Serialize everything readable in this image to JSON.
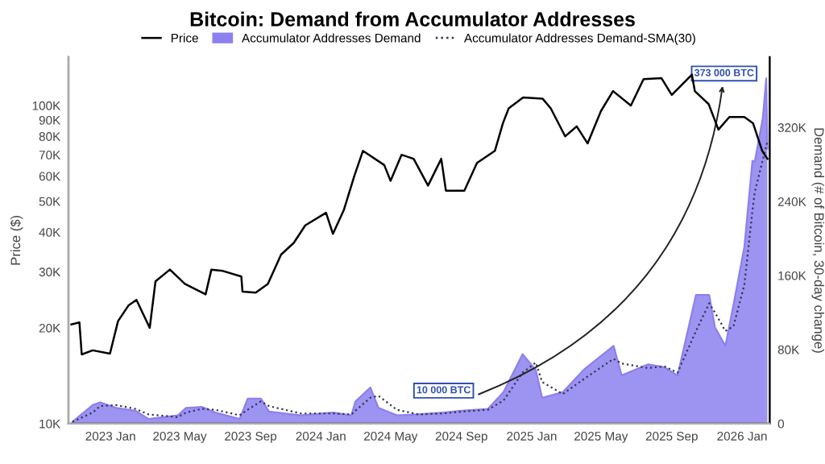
{
  "chart_data": {
    "type": "line",
    "title": "Bitcoin: Demand from Accumulator Addresses",
    "ylabel": "Price ($)",
    "y2label": "Demand (# of Bitcoin, 30-day change)",
    "log": "y",
    "legend": "top",
    "xlim": [
      "2022-10-20",
      "2026-02-18"
    ],
    "xticks": [
      {
        "value": "2023-01-01",
        "label": "2023 Jan"
      },
      {
        "value": "2023-05-01",
        "label": "2023 May"
      },
      {
        "value": "2023-09-01",
        "label": "2023 Sep"
      },
      {
        "value": "2024-01-01",
        "label": "2024 Jan"
      },
      {
        "value": "2024-05-01",
        "label": "2024 May"
      },
      {
        "value": "2024-09-01",
        "label": "2024 Sep"
      },
      {
        "value": "2025-01-01",
        "label": "2025 Jan"
      },
      {
        "value": "2025-05-01",
        "label": "2025 May"
      },
      {
        "value": "2025-09-01",
        "label": "2025 Sep"
      },
      {
        "value": "2026-01-01",
        "label": "2026 Jan"
      }
    ],
    "ylim": [
      10000,
      142000
    ],
    "yticks": [
      {
        "value": 10000,
        "label": "10K"
      },
      {
        "value": 20000,
        "label": "20K"
      },
      {
        "value": 30000,
        "label": "30K"
      },
      {
        "value": 40000,
        "label": "40K"
      },
      {
        "value": 50000,
        "label": "50K"
      },
      {
        "value": 60000,
        "label": "60K"
      },
      {
        "value": 70000,
        "label": "70K"
      },
      {
        "value": 80000,
        "label": "80K"
      },
      {
        "value": 90000,
        "label": "90K"
      },
      {
        "value": 100000,
        "label": "100K"
      }
    ],
    "y2lim": [
      0,
      396000
    ],
    "y2ticks": [
      0,
      {
        "value": 80000,
        "label": "80K"
      },
      {
        "value": 160000,
        "label": "160K"
      },
      {
        "value": 240000,
        "label": "240K"
      },
      {
        "value": 320000,
        "label": "320K"
      }
    ],
    "annotations": [
      "10 000 BTC",
      "373 000 BTC"
    ],
    "series": [
      {
        "name": "Price",
        "axis": "y",
        "color": "#000000",
        "x": [
          "2022-10-25",
          "2022-11-08",
          "2022-11-12",
          "2022-12-01",
          "2022-12-31",
          "2023-01-14",
          "2023-02-01",
          "2023-02-15",
          "2023-03-10",
          "2023-03-20",
          "2023-04-14",
          "2023-05-10",
          "2023-06-15",
          "2023-06-25",
          "2023-07-15",
          "2023-08-16",
          "2023-08-18",
          "2023-09-10",
          "2023-10-01",
          "2023-10-24",
          "2023-11-15",
          "2023-12-05",
          "2024-01-10",
          "2024-01-22",
          "2024-02-10",
          "2024-02-28",
          "2024-03-14",
          "2024-04-20",
          "2024-05-01",
          "2024-05-20",
          "2024-06-10",
          "2024-07-05",
          "2024-07-28",
          "2024-08-05",
          "2024-09-06",
          "2024-09-28",
          "2024-10-29",
          "2024-11-12",
          "2024-11-22",
          "2024-12-17",
          "2025-01-20",
          "2025-02-03",
          "2025-02-28",
          "2025-03-20",
          "2025-04-08",
          "2025-05-01",
          "2025-05-22",
          "2025-06-22",
          "2025-07-14",
          "2025-08-14",
          "2025-09-01",
          "2025-10-06",
          "2025-10-11",
          "2025-11-04",
          "2025-11-21",
          "2025-12-10",
          "2026-01-05",
          "2026-01-20",
          "2026-02-05",
          "2026-02-14"
        ],
        "values": [
          20500,
          20800,
          16500,
          17000,
          16600,
          21000,
          23500,
          24500,
          20000,
          28000,
          30500,
          27500,
          25500,
          30500,
          30200,
          29000,
          26000,
          25800,
          27500,
          34000,
          37000,
          42000,
          46000,
          39500,
          47000,
          60000,
          72000,
          65000,
          58000,
          70000,
          68000,
          56000,
          68000,
          54000,
          54000,
          66000,
          72000,
          88000,
          98000,
          106000,
          105000,
          98000,
          80000,
          86000,
          76000,
          96000,
          111000,
          100000,
          121000,
          122000,
          108000,
          125000,
          111000,
          101000,
          84000,
          92000,
          92000,
          88000,
          72000,
          68000
        ]
      },
      {
        "name": "Accumulator Addresses Demand",
        "type": "area",
        "axis": "y2",
        "color": "#8c80ef",
        "x": [
          "2022-10-27",
          "2022-12-01",
          "2022-12-14",
          "2023-01-11",
          "2023-02-13",
          "2023-03-08",
          "2023-04-28",
          "2023-05-12",
          "2023-06-09",
          "2023-07-02",
          "2023-08-13",
          "2023-08-27",
          "2023-09-19",
          "2023-10-03",
          "2023-11-27",
          "2024-01-22",
          "2024-02-23",
          "2024-03-01",
          "2024-03-27",
          "2024-04-10",
          "2024-05-12",
          "2024-06-18",
          "2024-08-01",
          "2024-09-01",
          "2024-10-17",
          "2024-11-13",
          "2024-12-16",
          "2025-01-08",
          "2025-01-19",
          "2025-02-24",
          "2025-04-01",
          "2025-05-23",
          "2025-06-06",
          "2025-07-22",
          "2025-08-19",
          "2025-09-11",
          "2025-10-13",
          "2025-11-05",
          "2025-11-15",
          "2025-12-03",
          "2025-12-17",
          "2026-01-05",
          "2026-01-19",
          "2026-01-23",
          "2026-02-06",
          "2026-02-12",
          "2026-02-14"
        ],
        "values": [
          2000,
          20000,
          23000,
          17000,
          14000,
          5000,
          9000,
          17000,
          18000,
          12000,
          5000,
          27000,
          27000,
          13000,
          9000,
          12000,
          9000,
          24000,
          39000,
          17000,
          9000,
          10000,
          12000,
          14000,
          16000,
          34000,
          75000,
          58000,
          28000,
          34000,
          58000,
          84000,
          52000,
          64000,
          61000,
          52000,
          139000,
          139000,
          104000,
          84000,
          128000,
          191000,
          284000,
          283000,
          330000,
          373000,
          297000
        ]
      },
      {
        "name": "Accumulator Addresses Demand-SMA(30)",
        "type": "line",
        "axis": "y2",
        "color": "#333355",
        "line_style": "dotted",
        "x": [
          "2022-10-27",
          "2022-12-01",
          "2022-12-14",
          "2023-01-11",
          "2023-02-13",
          "2023-03-08",
          "2023-04-28",
          "2023-05-12",
          "2023-06-09",
          "2023-07-02",
          "2023-08-13",
          "2023-08-27",
          "2023-09-19",
          "2023-10-03",
          "2023-11-27",
          "2024-01-22",
          "2024-02-23",
          "2024-03-01",
          "2024-03-27",
          "2024-04-10",
          "2024-05-12",
          "2024-06-18",
          "2024-08-01",
          "2024-09-01",
          "2024-10-17",
          "2024-11-13",
          "2024-12-16",
          "2025-01-08",
          "2025-01-19",
          "2025-02-24",
          "2025-04-01",
          "2025-05-23",
          "2025-06-06",
          "2025-07-22",
          "2025-08-19",
          "2025-09-11",
          "2025-10-13",
          "2025-11-05",
          "2025-11-15",
          "2025-12-03",
          "2025-12-17",
          "2026-01-05",
          "2026-01-19",
          "2026-01-23",
          "2026-02-06",
          "2026-02-12",
          "2026-02-14"
        ],
        "values": [
          2000,
          12000,
          19000,
          20000,
          16000,
          10000,
          7000,
          12000,
          16000,
          15000,
          9000,
          15000,
          24000,
          19000,
          11000,
          11000,
          10000,
          14000,
          28000,
          30000,
          15000,
          10000,
          11000,
          13000,
          15000,
          25000,
          55000,
          66000,
          45000,
          32000,
          48000,
          70000,
          65000,
          60000,
          62000,
          55000,
          100000,
          130000,
          120000,
          100000,
          105000,
          150000,
          230000,
          250000,
          285000,
          300000,
          305000
        ]
      }
    ]
  }
}
